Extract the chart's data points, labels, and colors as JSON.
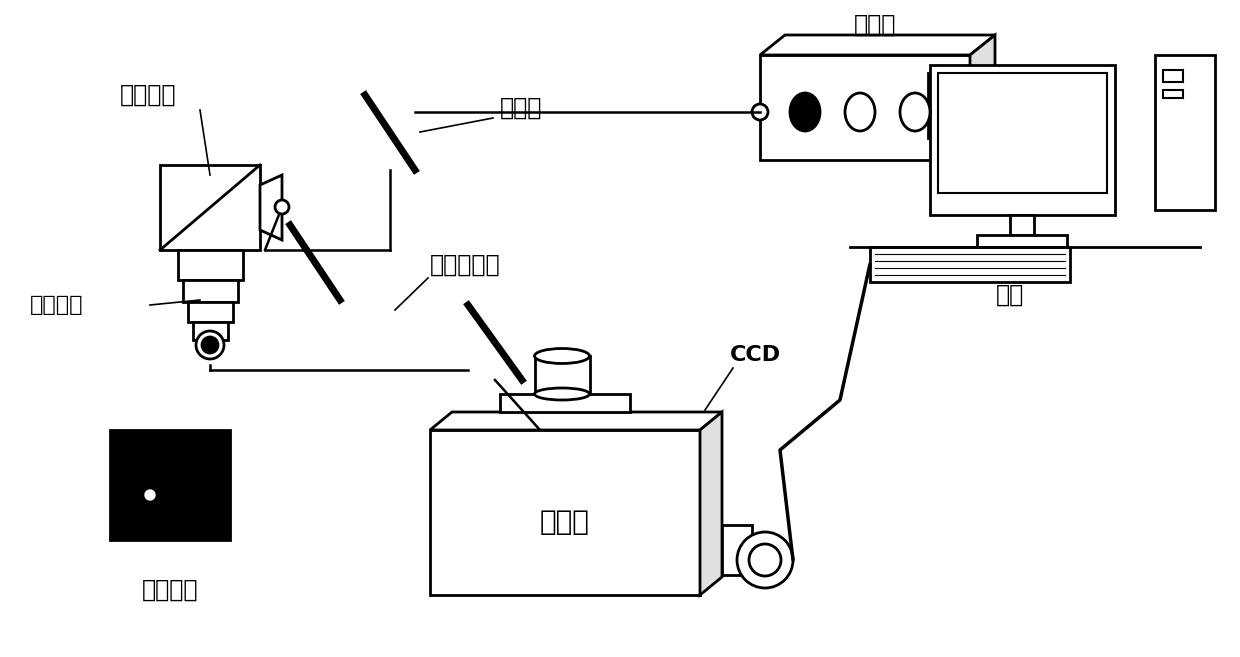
{
  "background_color": "#ffffff",
  "figsize": [
    12.4,
    6.57
  ],
  "dpi": 100,
  "labels": {
    "laser": "激光器",
    "raman_probe": "拉曼探头",
    "incident_light": "入射光",
    "raman_scatter": "拉曼散射光",
    "microscope": "显微物镜",
    "spectrometer": "光谱仪",
    "ccd": "CCD",
    "computer": "电脑",
    "sample": "待检样品"
  }
}
